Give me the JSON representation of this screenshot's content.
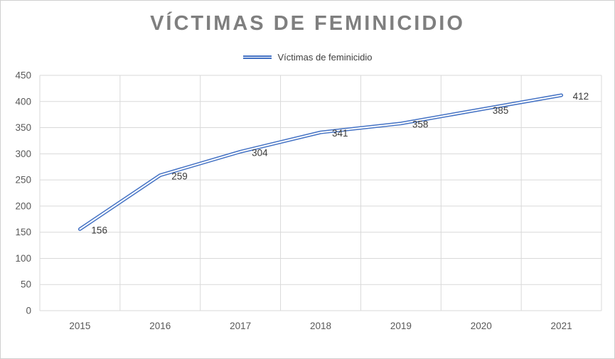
{
  "chart_data": {
    "type": "line",
    "title": "VÍCTIMAS DE FEMINICIDIO",
    "categories": [
      "2015",
      "2016",
      "2017",
      "2018",
      "2019",
      "2020",
      "2021"
    ],
    "series": [
      {
        "name": "Víctimas de feminicidio",
        "values": [
          156,
          259,
          304,
          341,
          358,
          385,
          412
        ]
      }
    ],
    "ylim": [
      0,
      450
    ],
    "ytick_step": 50,
    "yticks": [
      0,
      50,
      100,
      150,
      200,
      250,
      300,
      350,
      400,
      450
    ],
    "grid": true,
    "legend_position": "top",
    "data_labels": true,
    "colors": {
      "line": "#4472c4",
      "line_inner": "#ffffff",
      "grid": "#d9d9d9",
      "axis_text": "#595959",
      "title_text": "#7f7f7f",
      "data_label_text": "#3b3b3b",
      "border": "#d0d0d0"
    }
  }
}
